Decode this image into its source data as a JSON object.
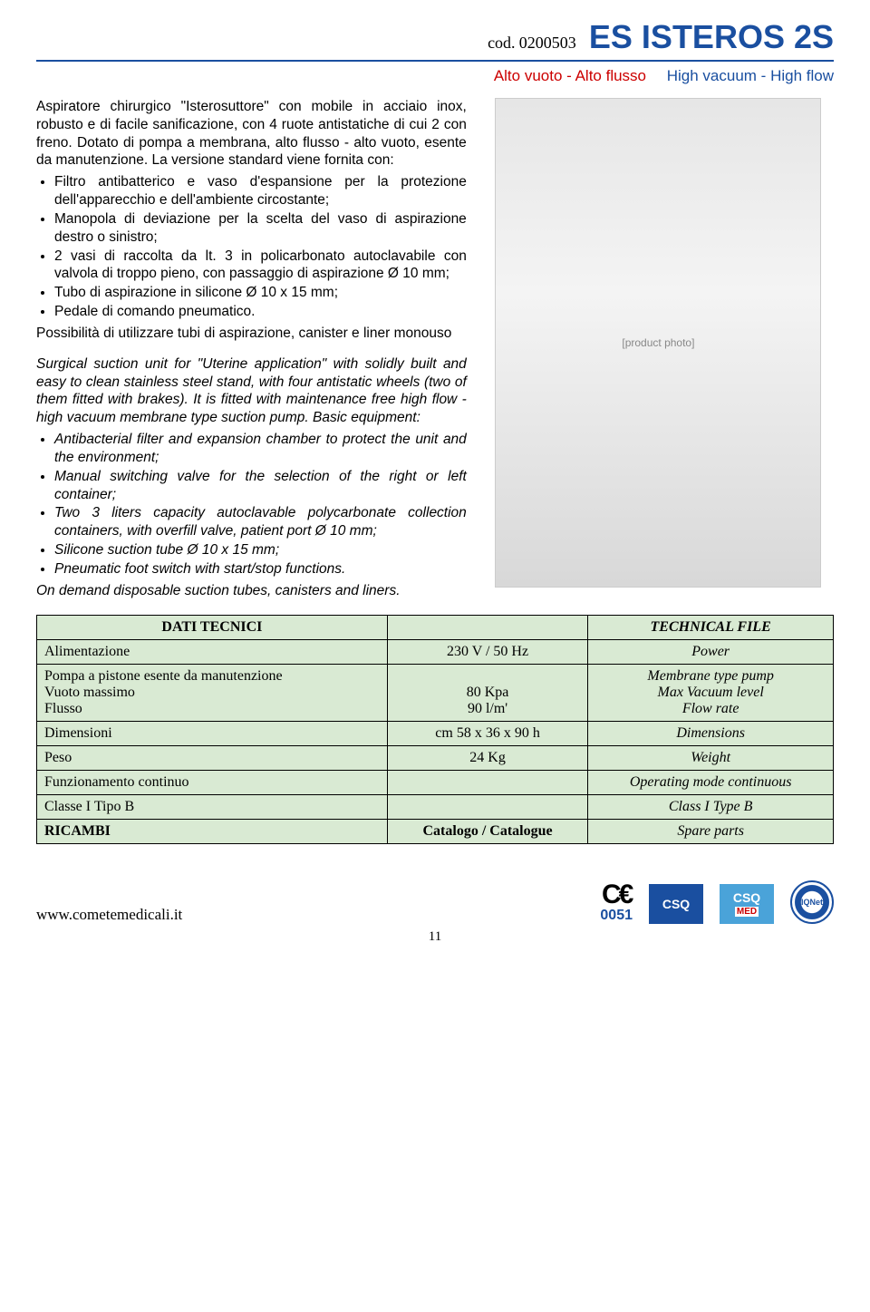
{
  "header": {
    "cod_label": "cod.",
    "cod_value": "0200503",
    "product_title": "ES ISTEROS 2S",
    "subtitle_it": "Alto vuoto - Alto flusso",
    "subtitle_en": "High vacuum - High flow"
  },
  "it_intro": "Aspiratore chirurgico \"Isterosuttore\" con mobile in acciaio inox, robusto e di facile sanificazione, con 4 ruote antistatiche di cui 2 con freno. Dotato di pompa a membrana, alto flusso - alto vuoto, esente da manutenzione. La versione standard viene fornita con:",
  "it_bullets": [
    "Filtro antibatterico e vaso d'espansione per la protezione dell'apparecchio e dell'ambiente circostante;",
    "Manopola di deviazione per la scelta del vaso di aspirazione destro o sinistro;",
    "2 vasi di raccolta da lt. 3 in policarbonato autoclavabile con valvola di troppo pieno, con passaggio di aspirazione Ø 10 mm;",
    "Tubo di aspirazione in silicone Ø 10 x 15 mm;",
    "Pedale di comando pneumatico."
  ],
  "it_outro": "Possibilità di utilizzare tubi di aspirazione, canister e liner monouso",
  "en_intro": "Surgical suction unit for \"Uterine application\" with solidly built and easy to clean stainless steel stand, with four antistatic wheels (two of them fitted with brakes). It is fitted with maintenance free high flow - high vacuum membrane type suction pump. Basic equipment:",
  "en_bullets": [
    "Antibacterial filter and expansion chamber to protect the unit and the environment;",
    "Manual switching valve for the selection of the right or left container;",
    "Two 3 liters capacity autoclavable polycarbonate collection containers, with overfill valve, patient port Ø 10 mm;",
    "Silicone suction tube Ø 10 x 15 mm;",
    "Pneumatic foot switch with start/stop functions."
  ],
  "en_outro": "On demand disposable suction tubes, canisters and liners.",
  "photo_placeholder": "[product photo]",
  "table": {
    "header_left": "DATI TECNICI",
    "header_right": "TECHNICAL FILE",
    "rows": [
      {
        "l": "Alimentazione",
        "c": "230 V  / 50 Hz",
        "r": "Power"
      },
      {
        "l": "Pompa a pistone esente da manutenzione\nVuoto massimo\nFlusso",
        "c": "\n80 Kpa\n90 l/m'",
        "r": "Membrane type pump\nMax Vacuum level\nFlow rate"
      },
      {
        "l": "Dimensioni",
        "c": "cm 58 x 36 x 90 h",
        "r": "Dimensions"
      },
      {
        "l": "Peso",
        "c": "24 Kg",
        "r": "Weight"
      },
      {
        "l": "Funzionamento continuo",
        "c": "",
        "r": "Operating mode continuous"
      },
      {
        "l": "Classe I  Tipo B",
        "c": "",
        "r": "Class I Type B"
      },
      {
        "l": "RICAMBI",
        "c": "Catalogo / Catalogue",
        "r": "Spare parts"
      }
    ],
    "bg_color": "#d9ead3",
    "border_color": "#000000"
  },
  "footer": {
    "url": "www.cometemedicali.it",
    "ce_num": "0051",
    "csq_label": "CSQ",
    "med_label": "MED",
    "iqnet_label": "IQNet",
    "page_num": "11"
  }
}
